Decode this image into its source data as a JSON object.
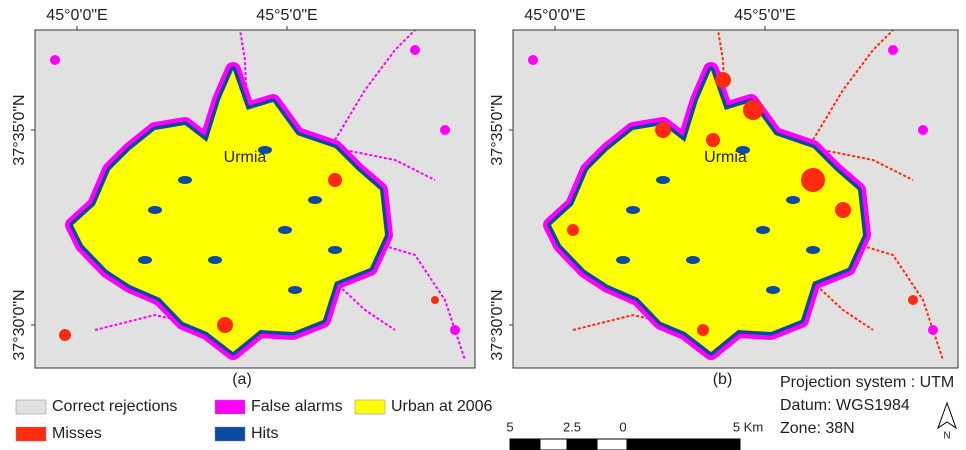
{
  "panels": [
    {
      "label": "(a)",
      "place_label": "Urmia",
      "x_ticks": [
        "45°0'0\"E",
        "45°5'0\"E"
      ],
      "y_ticks": [
        "37°35'0\"N",
        "37°30'0\"N"
      ]
    },
    {
      "label": "(b)",
      "place_label": "Urmia",
      "x_ticks": [
        "45°0'0\"E",
        "45°5'0\"E"
      ],
      "y_ticks": [
        "37°35'0\"N",
        "37°30'0\"N"
      ]
    }
  ],
  "legend": [
    {
      "label": "Correct rejections",
      "color": "#e1e1e1"
    },
    {
      "label": "False alarms",
      "color": "#ff00ff"
    },
    {
      "label": "Urban at 2006",
      "color": "#ffff00"
    },
    {
      "label": "Misses",
      "color": "#ff2a10"
    },
    {
      "label": "Hits",
      "color": "#0a4aa0"
    }
  ],
  "scale_bar": {
    "labels": [
      "5",
      "2.5",
      "0",
      "5 Km"
    ]
  },
  "projection": [
    "Projection system : UTM",
    "Datum: WGS1984",
    "Zone: 38N"
  ],
  "north_arrow": "N"
}
